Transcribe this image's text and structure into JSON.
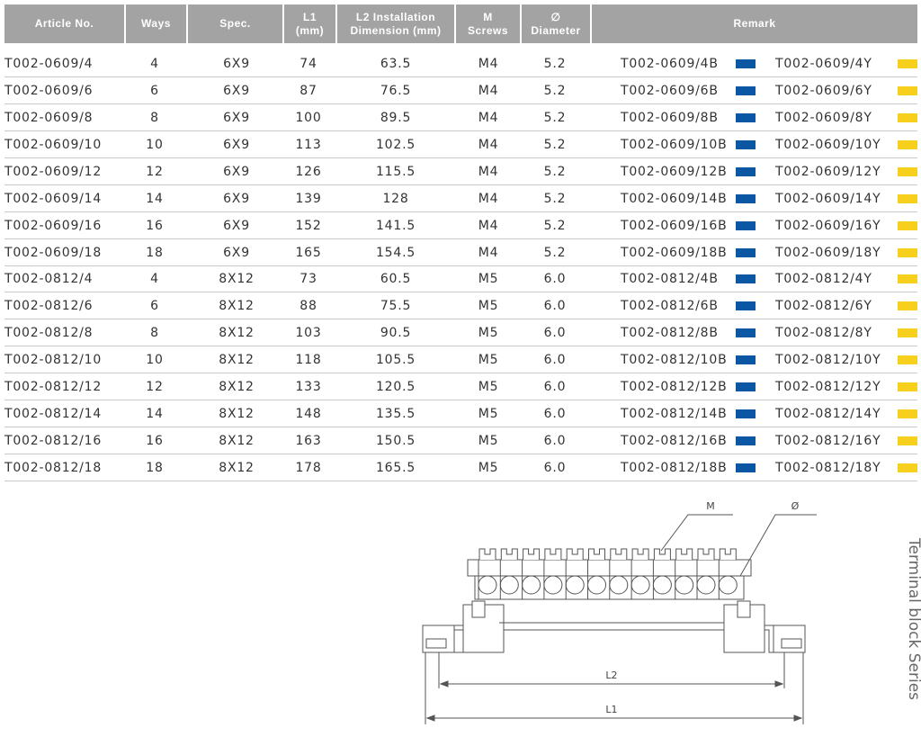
{
  "table": {
    "headers": [
      [
        "Article No."
      ],
      [
        "Ways"
      ],
      [
        "Spec."
      ],
      [
        "L1",
        "(mm)"
      ],
      [
        "L2 Installation",
        "Dimension (mm)"
      ],
      [
        "M",
        "Screws"
      ],
      [
        "∅",
        "Diameter"
      ],
      [
        "Remark"
      ]
    ],
    "swatch_colors": [
      "#0b57a4",
      "#f6d01c"
    ],
    "rows": [
      [
        "T002-0609/4",
        "4",
        "6X9",
        "74",
        "63.5",
        "M4",
        "5.2",
        "T002-0609/4B",
        "T002-0609/4Y"
      ],
      [
        "T002-0609/6",
        "6",
        "6X9",
        "87",
        "76.5",
        "M4",
        "5.2",
        "T002-0609/6B",
        "T002-0609/6Y"
      ],
      [
        "T002-0609/8",
        "8",
        "6X9",
        "100",
        "89.5",
        "M4",
        "5.2",
        "T002-0609/8B",
        "T002-0609/8Y"
      ],
      [
        "T002-0609/10",
        "10",
        "6X9",
        "113",
        "102.5",
        "M4",
        "5.2",
        "T002-0609/10B",
        "T002-0609/10Y"
      ],
      [
        "T002-0609/12",
        "12",
        "6X9",
        "126",
        "115.5",
        "M4",
        "5.2",
        "T002-0609/12B",
        "T002-0609/12Y"
      ],
      [
        "T002-0609/14",
        "14",
        "6X9",
        "139",
        "128",
        "M4",
        "5.2",
        "T002-0609/14B",
        "T002-0609/14Y"
      ],
      [
        "T002-0609/16",
        "16",
        "6X9",
        "152",
        "141.5",
        "M4",
        "5.2",
        "T002-0609/16B",
        "T002-0609/16Y"
      ],
      [
        "T002-0609/18",
        "18",
        "6X9",
        "165",
        "154.5",
        "M4",
        "5.2",
        "T002-0609/18B",
        "T002-0609/18Y"
      ],
      [
        "T002-0812/4",
        "4",
        "8X12",
        "73",
        "60.5",
        "M5",
        "6.0",
        "T002-0812/4B",
        "T002-0812/4Y"
      ],
      [
        "T002-0812/6",
        "6",
        "8X12",
        "88",
        "75.5",
        "M5",
        "6.0",
        "T002-0812/6B",
        "T002-0812/6Y"
      ],
      [
        "T002-0812/8",
        "8",
        "8X12",
        "103",
        "90.5",
        "M5",
        "6.0",
        "T002-0812/8B",
        "T002-0812/8Y"
      ],
      [
        "T002-0812/10",
        "10",
        "8X12",
        "118",
        "105.5",
        "M5",
        "6.0",
        "T002-0812/10B",
        "T002-0812/10Y"
      ],
      [
        "T002-0812/12",
        "12",
        "8X12",
        "133",
        "120.5",
        "M5",
        "6.0",
        "T002-0812/12B",
        "T002-0812/12Y"
      ],
      [
        "T002-0812/14",
        "14",
        "8X12",
        "148",
        "135.5",
        "M5",
        "6.0",
        "T002-0812/14B",
        "T002-0812/14Y"
      ],
      [
        "T002-0812/16",
        "16",
        "8X12",
        "163",
        "150.5",
        "M5",
        "6.0",
        "T002-0812/16B",
        "T002-0812/16Y"
      ],
      [
        "T002-0812/18",
        "18",
        "8X12",
        "178",
        "165.5",
        "M5",
        "6.0",
        "T002-0812/18B",
        "T002-0812/18Y"
      ]
    ]
  },
  "diagram": {
    "labels": {
      "m": "M",
      "diameter": "Ø",
      "l2": "L2",
      "l1": "L1"
    }
  },
  "side_title": "Terminal block Series"
}
